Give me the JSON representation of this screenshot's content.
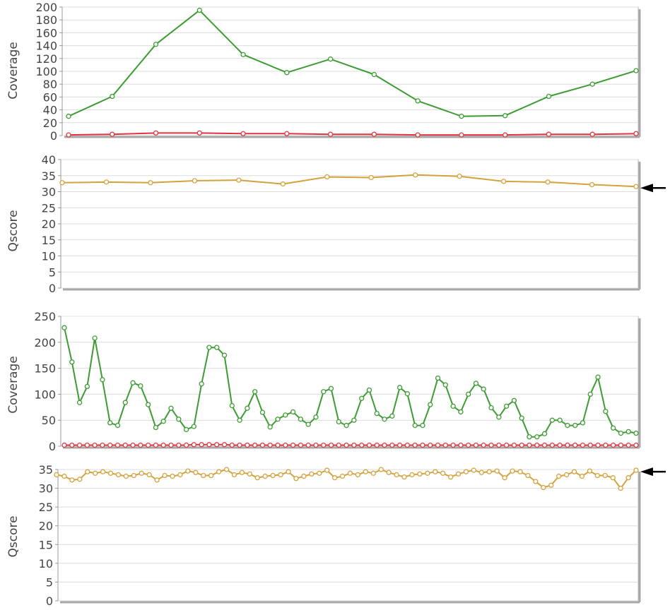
{
  "colors": {
    "coverage": "#3c9c32",
    "low": "#e0343f",
    "qscore": "#d4a23c",
    "grid": "#dcdcdc",
    "arrow": "#000000"
  },
  "chart_data": [
    {
      "type": "line",
      "ylabel": "Coverage",
      "ylim": [
        0,
        200
      ],
      "yticks": [
        0,
        20,
        40,
        60,
        80,
        100,
        120,
        140,
        160,
        180,
        200
      ],
      "grid": true,
      "series": [
        {
          "color": "coverage",
          "values": [
            30,
            61,
            142,
            195,
            126,
            98,
            119,
            95,
            54,
            30,
            31,
            61,
            80,
            101
          ]
        },
        {
          "color": "low",
          "values": [
            1,
            2,
            4,
            4,
            3,
            3,
            2,
            2,
            1,
            1,
            1,
            2,
            2,
            3
          ]
        }
      ]
    },
    {
      "type": "line",
      "ylabel": "Qscore",
      "ylim": [
        0,
        40
      ],
      "yticks": [
        0,
        5,
        10,
        15,
        20,
        25,
        30,
        35,
        40
      ],
      "grid": true,
      "arrow": true,
      "series": [
        {
          "color": "qscore",
          "values": [
            32.8,
            33.0,
            32.8,
            33.4,
            33.6,
            32.4,
            34.6,
            34.4,
            35.2,
            34.8,
            33.2,
            33.0,
            32.2,
            31.6
          ]
        }
      ]
    },
    {
      "type": "line",
      "ylabel": "Coverage",
      "ylim": [
        0,
        250
      ],
      "yticks": [
        0,
        50,
        100,
        150,
        200,
        250
      ],
      "grid": true,
      "series": [
        {
          "color": "coverage",
          "values": [
            228,
            162,
            84,
            115,
            208,
            128,
            45,
            40,
            84,
            122,
            116,
            80,
            36,
            48,
            73,
            52,
            32,
            38,
            120,
            190,
            190,
            175,
            78,
            50,
            73,
            105,
            65,
            37,
            52,
            60,
            66,
            52,
            42,
            56,
            105,
            111,
            47,
            40,
            50,
            92,
            108,
            63,
            52,
            58,
            113,
            101,
            40,
            40,
            80,
            131,
            118,
            77,
            66,
            100,
            121,
            110,
            74,
            56,
            77,
            88,
            54,
            18,
            18,
            24,
            50,
            50,
            40,
            40,
            45,
            100,
            133,
            67,
            35,
            25,
            28,
            25
          ]
        },
        {
          "color": "low",
          "values": [
            2,
            2,
            2,
            2,
            2,
            2,
            2,
            2,
            2,
            2,
            2,
            2,
            2,
            2,
            2,
            2,
            2,
            3,
            3,
            3,
            3,
            3,
            2,
            2,
            2,
            2,
            2,
            2,
            2,
            2,
            2,
            2,
            2,
            2,
            2,
            2,
            2,
            2,
            2,
            2,
            2,
            2,
            2,
            2,
            2,
            2,
            2,
            2,
            2,
            2,
            2,
            2,
            2,
            2,
            2,
            2,
            2,
            2,
            2,
            2,
            2,
            2,
            2,
            2,
            2,
            2,
            2,
            2,
            2,
            2,
            2,
            2,
            2,
            2,
            2,
            2
          ]
        }
      ]
    },
    {
      "type": "line",
      "ylabel": "Qscore",
      "ylim": [
        0,
        35
      ],
      "yticks": [
        0,
        5,
        10,
        15,
        20,
        25,
        30,
        35
      ],
      "grid": true,
      "arrow": true,
      "series": [
        {
          "color": "qscore",
          "values": [
            33.6,
            33.2,
            32.2,
            32.4,
            34.4,
            34.0,
            34.4,
            34.0,
            33.6,
            33.2,
            33.4,
            34.0,
            33.6,
            32.2,
            33.4,
            33.2,
            33.6,
            34.6,
            34.2,
            33.4,
            33.4,
            34.4,
            35.0,
            33.6,
            34.2,
            33.8,
            32.8,
            33.2,
            33.4,
            33.6,
            34.4,
            32.6,
            33.2,
            33.8,
            34.0,
            34.8,
            32.8,
            33.2,
            34.0,
            33.6,
            34.4,
            34.0,
            35.0,
            34.2,
            33.6,
            33.0,
            33.6,
            33.8,
            34.0,
            34.4,
            34.0,
            33.0,
            33.8,
            34.4,
            34.8,
            34.2,
            34.4,
            34.6,
            32.8,
            34.6,
            34.4,
            33.4,
            31.8,
            30.2,
            30.8,
            33.2,
            33.6,
            34.4,
            33.2,
            34.6,
            33.4,
            33.4,
            32.8,
            30.0,
            32.8,
            34.8
          ]
        }
      ]
    }
  ]
}
